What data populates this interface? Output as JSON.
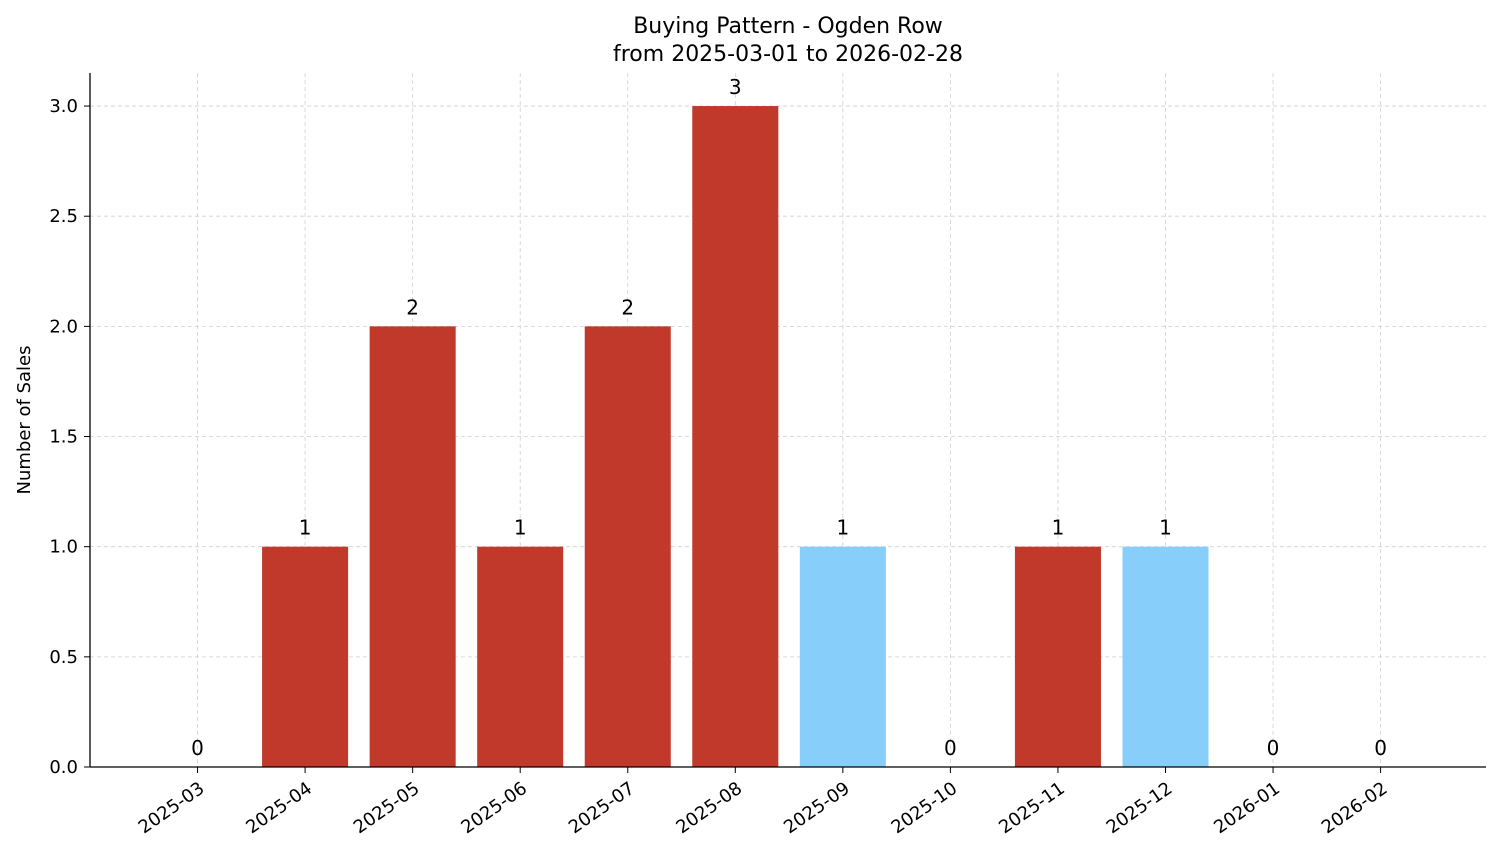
{
  "chart_data": {
    "type": "bar",
    "title": "Buying Pattern - Ogden Row",
    "subtitle": "from 2025-03-01 to 2026-02-28",
    "xlabel": "",
    "ylabel": "Number of Sales",
    "categories": [
      "2025-03",
      "2025-04",
      "2025-05",
      "2025-06",
      "2025-07",
      "2025-08",
      "2025-09",
      "2025-10",
      "2025-11",
      "2025-12",
      "2026-01",
      "2026-02"
    ],
    "values": [
      0,
      1,
      2,
      1,
      2,
      3,
      1,
      0,
      1,
      1,
      0,
      0
    ],
    "bar_colors": [
      "#c0392b",
      "#c0392b",
      "#c0392b",
      "#c0392b",
      "#c0392b",
      "#c0392b",
      "#87cefa",
      "#c0392b",
      "#c0392b",
      "#87cefa",
      "#c0392b",
      "#c0392b"
    ],
    "data_labels": [
      "0",
      "1",
      "2",
      "1",
      "2",
      "3",
      "1",
      "0",
      "1",
      "1",
      "0",
      "0"
    ],
    "ylim": [
      0,
      3.15
    ],
    "yticks": [
      "0.0",
      "0.5",
      "1.0",
      "1.5",
      "2.0",
      "2.5",
      "3.0"
    ],
    "grid": true,
    "grid_style": "dashed"
  }
}
